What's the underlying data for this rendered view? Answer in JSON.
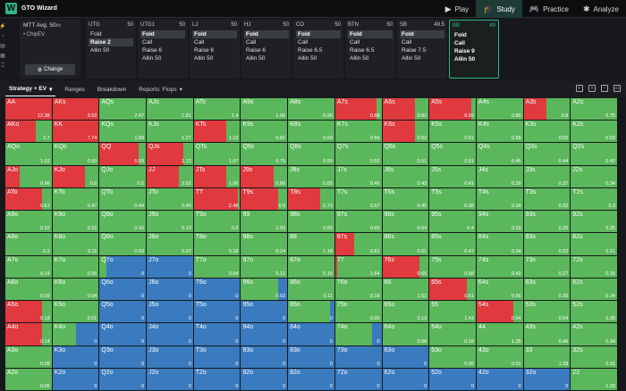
{
  "app": {
    "logo": "W",
    "title": "GTO Wizard"
  },
  "nav": [
    {
      "label": "Play",
      "icon": "▶"
    },
    {
      "label": "Study",
      "icon": "🎓",
      "active": true
    },
    {
      "label": "Practice",
      "icon": "🎮"
    },
    {
      "label": "Analyze",
      "icon": "✱"
    }
  ],
  "rail": [
    "⚡",
    "◔",
    "▤",
    "▦",
    "⌶"
  ],
  "settings": {
    "format": "MTT",
    "stack": "Avg. 50",
    "stack_unit": "bb",
    "metric": "ChipEV",
    "change": "Change"
  },
  "positions": [
    {
      "name": "UTG",
      "stack": "50",
      "actions": [
        "Fold",
        "Raise 2",
        "Allin 50"
      ],
      "selected": 1
    },
    {
      "name": "UTG1",
      "stack": "50",
      "actions": [
        "Fold",
        "Call",
        "Raise 6",
        "Allin 50"
      ],
      "selected": 0
    },
    {
      "name": "LJ",
      "stack": "50",
      "actions": [
        "Fold",
        "Call",
        "Raise 6",
        "Allin 50"
      ],
      "selected": 0
    },
    {
      "name": "HJ",
      "stack": "50",
      "actions": [
        "Fold",
        "Call",
        "Raise 6",
        "Allin 50"
      ],
      "selected": 0
    },
    {
      "name": "CO",
      "stack": "50",
      "actions": [
        "Fold",
        "Call",
        "Raise 6.5",
        "Allin 50"
      ],
      "selected": 0
    },
    {
      "name": "BTN",
      "stack": "50",
      "actions": [
        "Fold",
        "Call",
        "Raise 6.5",
        "Allin 50"
      ],
      "selected": 0
    },
    {
      "name": "SB",
      "stack": "49.5",
      "actions": [
        "Fold",
        "Call",
        "Raise 7.5",
        "Allin 50"
      ],
      "selected": 0
    },
    {
      "name": "BB",
      "stack": "49",
      "actions": [
        "Fold",
        "Call",
        "Raise 9",
        "Allin 50"
      ],
      "selected": -1,
      "active": true
    }
  ],
  "toolbar": {
    "tabs": [
      "Strategy + EV",
      "Ranges",
      "Breakdown",
      "Reports: Flops"
    ]
  },
  "colors": {
    "fold": "#3a7bbf",
    "call": "#5bb75b",
    "raise": "#e0393e",
    "accent": "#2fb58a"
  },
  "grid": [
    [
      [
        "AA",
        "12.38",
        0,
        0,
        1
      ],
      [
        "AKs",
        "3.52",
        0,
        0,
        1
      ],
      [
        "AQs",
        "2.47",
        0,
        1,
        0
      ],
      [
        "AJs",
        "1.81",
        0,
        1,
        0
      ],
      [
        "ATs",
        "1.4",
        0,
        1,
        0
      ],
      [
        "A9s",
        "1.06",
        0,
        1,
        0
      ],
      [
        "A8s",
        "0.96",
        0,
        1,
        0
      ],
      [
        "A7s",
        "0.88",
        0,
        0.1,
        0.9
      ],
      [
        "A6s",
        "0.82",
        0,
        0.3,
        0.7
      ],
      [
        "A5s",
        "0.92",
        0,
        0.1,
        0.9
      ],
      [
        "A4s",
        "0.86",
        0,
        1,
        0
      ],
      [
        "A3s",
        "0.8",
        0,
        0.5,
        0.5
      ],
      [
        "A2s",
        "0.75",
        0,
        1,
        0
      ]
    ],
    [
      [
        "AKo",
        "2.7",
        0,
        0.35,
        0.65
      ],
      [
        "KK",
        "7.74",
        0,
        0,
        1
      ],
      [
        "KQs",
        "1.59",
        0,
        1,
        0
      ],
      [
        "KJs",
        "1.27",
        0,
        1,
        0
      ],
      [
        "KTs",
        "1.13",
        0,
        0.3,
        0.7
      ],
      [
        "K9s",
        "0.81",
        0,
        1,
        0
      ],
      [
        "K8s",
        "0.69",
        0,
        1,
        0
      ],
      [
        "K7s",
        "0.66",
        0,
        1,
        0
      ],
      [
        "K6s",
        "0.62",
        0,
        0.3,
        0.7
      ],
      [
        "K5s",
        "0.61",
        0,
        1,
        0
      ],
      [
        "K4s",
        "0.58",
        0,
        1,
        0
      ],
      [
        "K3s",
        "0.55",
        0,
        1,
        0
      ],
      [
        "K2s",
        "0.53",
        0,
        1,
        0
      ]
    ],
    [
      [
        "AQo",
        "1.62",
        0,
        1,
        0
      ],
      [
        "KQo",
        "0.93",
        0,
        1,
        0
      ],
      [
        "QQ",
        "5.09",
        0,
        0.15,
        0.85
      ],
      [
        "QJs",
        "1.12",
        0,
        0.2,
        0.8
      ],
      [
        "QTs",
        "1.07",
        0,
        1,
        0
      ],
      [
        "Q9s",
        "0.75",
        0,
        1,
        0
      ],
      [
        "Q8s",
        "0.59",
        0,
        1,
        0
      ],
      [
        "Q7s",
        "0.52",
        0,
        1,
        0
      ],
      [
        "Q6s",
        "0.51",
        0,
        1,
        0
      ],
      [
        "Q5s",
        "0.51",
        0,
        1,
        0
      ],
      [
        "Q4s",
        "0.46",
        0,
        1,
        0
      ],
      [
        "Q3s",
        "0.44",
        0,
        1,
        0
      ],
      [
        "Q2s",
        "0.42",
        0,
        1,
        0
      ]
    ],
    [
      [
        "AJo",
        "0.96",
        0,
        0.7,
        0.3
      ],
      [
        "KJo",
        "0.6",
        0,
        0.3,
        0.7
      ],
      [
        "QJo",
        "0.5",
        0,
        1,
        0
      ],
      [
        "JJ",
        "3.52",
        0,
        0.3,
        0.7
      ],
      [
        "JTs",
        "1.06",
        0,
        0.3,
        0.7
      ],
      [
        "J9s",
        "0.86",
        0,
        0.3,
        0.7
      ],
      [
        "J8s",
        "0.65",
        0,
        1,
        0
      ],
      [
        "J7s",
        "0.46",
        0,
        1,
        0
      ],
      [
        "J6s",
        "0.43",
        0,
        1,
        0
      ],
      [
        "J5s",
        "0.41",
        0,
        1,
        0
      ],
      [
        "J4s",
        "0.39",
        0,
        1,
        0
      ],
      [
        "J3s",
        "0.37",
        0,
        1,
        0
      ],
      [
        "J2s",
        "0.34",
        0,
        1,
        0
      ]
    ],
    [
      [
        "ATo",
        "0.61",
        0,
        0.2,
        0.8
      ],
      [
        "KTo",
        "0.47",
        0,
        1,
        0
      ],
      [
        "QTo",
        "0.44",
        0,
        1,
        0
      ],
      [
        "JTo",
        "0.45",
        0,
        1,
        0
      ],
      [
        "TT",
        "2.48",
        0,
        0.05,
        0.95
      ],
      [
        "T9s",
        "0.9",
        0,
        0.2,
        0.8
      ],
      [
        "T8s",
        "0.73",
        0,
        0.3,
        0.7
      ],
      [
        "T7s",
        "0.57",
        0,
        1,
        0
      ],
      [
        "T6s",
        "0.45",
        0,
        1,
        0
      ],
      [
        "T5s",
        "0.38",
        0,
        1,
        0
      ],
      [
        "T4s",
        "0.34",
        0,
        1,
        0
      ],
      [
        "T3s",
        "0.32",
        0,
        1,
        0
      ],
      [
        "T2s",
        "0.3",
        0,
        1,
        0
      ]
    ],
    [
      [
        "A9o",
        "0.32",
        0,
        1,
        0
      ],
      [
        "K9o",
        "0.22",
        0,
        1,
        0
      ],
      [
        "Q9o",
        "0.16",
        0,
        1,
        0
      ],
      [
        "J9o",
        "0.19",
        0,
        1,
        0
      ],
      [
        "T9o",
        "0.3",
        0,
        1,
        0
      ],
      [
        "99",
        "2.03",
        0,
        1,
        0
      ],
      [
        "98s",
        "0.83",
        0,
        1,
        0
      ],
      [
        "97s",
        "0.65",
        0,
        1,
        0
      ],
      [
        "96s",
        "0.54",
        0,
        1,
        0
      ],
      [
        "95s",
        "0.4",
        0,
        1,
        0
      ],
      [
        "94s",
        "0.29",
        0,
        1,
        0
      ],
      [
        "93s",
        "0.26",
        0,
        1,
        0
      ],
      [
        "92s",
        "0.25",
        0,
        1,
        0
      ]
    ],
    [
      [
        "A8o",
        "0.2",
        0,
        1,
        0
      ],
      [
        "K8o",
        "0.11",
        0,
        1,
        0
      ],
      [
        "Q8o",
        "0.03",
        0,
        1,
        0
      ],
      [
        "J8o",
        "0.07",
        0,
        1,
        0
      ],
      [
        "T8o",
        "0.18",
        0,
        1,
        0
      ],
      [
        "98o",
        "0.24",
        0,
        1,
        0
      ],
      [
        "88",
        "1.18",
        0,
        1,
        0
      ],
      [
        "87s",
        "0.81",
        0,
        0.6,
        0.4
      ],
      [
        "86s",
        "0.61",
        0,
        1,
        0
      ],
      [
        "85s",
        "0.47",
        0,
        1,
        0
      ],
      [
        "84s",
        "0.34",
        0,
        1,
        0
      ],
      [
        "83s",
        "0.22",
        0,
        1,
        0
      ],
      [
        "82s",
        "0.21",
        0,
        1,
        0
      ]
    ],
    [
      [
        "A7o",
        "0.14",
        0,
        1,
        0
      ],
      [
        "K7o",
        "0.06",
        0,
        1,
        0
      ],
      [
        "Q7o",
        "0",
        0.85,
        0.15,
        0
      ],
      [
        "J7o",
        "0",
        1,
        0,
        0
      ],
      [
        "T7o",
        "0.04",
        0,
        1,
        0
      ],
      [
        "97o",
        "0.12",
        0,
        1,
        0
      ],
      [
        "87o",
        "0.15",
        0,
        1,
        0
      ],
      [
        "77",
        "1.64",
        0,
        0.95,
        0.05
      ],
      [
        "76s",
        "0.66",
        0,
        0.2,
        0.8
      ],
      [
        "75s",
        "0.58",
        0,
        1,
        0
      ],
      [
        "74s",
        "0.42",
        0,
        1,
        0
      ],
      [
        "73s",
        "0.27",
        0,
        1,
        0
      ],
      [
        "72s",
        "0.16",
        0,
        1,
        0
      ]
    ],
    [
      [
        "A6o",
        "0.09",
        0,
        1,
        0
      ],
      [
        "K6o",
        "0.04",
        0,
        1,
        0
      ],
      [
        "Q6o",
        "0",
        1,
        0,
        0
      ],
      [
        "J6o",
        "0",
        1,
        0,
        0
      ],
      [
        "T6o",
        "0",
        1,
        0,
        0
      ],
      [
        "96o",
        "0.02",
        0.2,
        0.8,
        0
      ],
      [
        "86o",
        "0.11",
        0,
        1,
        0
      ],
      [
        "76o",
        "0.18",
        0,
        1,
        0
      ],
      [
        "66",
        "1.52",
        0,
        1,
        0
      ],
      [
        "65s",
        "0.61",
        0,
        0.2,
        0.8
      ],
      [
        "64s",
        "0.56",
        0,
        1,
        0
      ],
      [
        "63s",
        "0.39",
        0,
        1,
        0
      ],
      [
        "62s",
        "0.24",
        0,
        1,
        0
      ]
    ],
    [
      [
        "A5o",
        "0.18",
        0,
        0.2,
        0.8
      ],
      [
        "K5o",
        "0.01",
        0,
        1,
        0
      ],
      [
        "Q5o",
        "0",
        1,
        0,
        0
      ],
      [
        "J5o",
        "0",
        1,
        0,
        0
      ],
      [
        "T5o",
        "0",
        1,
        0,
        0
      ],
      [
        "95o",
        "0",
        1,
        0,
        0
      ],
      [
        "85o",
        "0",
        0.1,
        0.9,
        0
      ],
      [
        "75o",
        "0.05",
        0,
        1,
        0
      ],
      [
        "65o",
        "0.13",
        0,
        1,
        0
      ],
      [
        "55",
        "1.43",
        0,
        1,
        0
      ],
      [
        "54s",
        "0.54",
        0,
        0.2,
        0.8
      ],
      [
        "53s",
        "0.54",
        0,
        1,
        0
      ],
      [
        "52s",
        "0.39",
        0,
        1,
        0
      ]
    ],
    [
      [
        "A4o",
        "0.14",
        0,
        0.2,
        0.8
      ],
      [
        "K4o",
        "0",
        0.5,
        0.5,
        0
      ],
      [
        "Q4o",
        "0",
        1,
        0,
        0
      ],
      [
        "J4o",
        "0",
        1,
        0,
        0
      ],
      [
        "T4o",
        "0",
        1,
        0,
        0
      ],
      [
        "94o",
        "0",
        1,
        0,
        0
      ],
      [
        "84o",
        "0",
        1,
        0,
        0
      ],
      [
        "74o",
        "0",
        0.2,
        0.8,
        0
      ],
      [
        "64o",
        "0.08",
        0,
        1,
        0
      ],
      [
        "54o",
        "0.18",
        0,
        1,
        0
      ],
      [
        "44",
        "1.35",
        0,
        1,
        0
      ],
      [
        "43s",
        "0.46",
        0,
        1,
        0
      ],
      [
        "42s",
        "0.34",
        0,
        1,
        0
      ]
    ],
    [
      [
        "A3o",
        "0.08",
        0,
        1,
        0
      ],
      [
        "K3o",
        "0",
        1,
        0,
        0
      ],
      [
        "Q3o",
        "0",
        1,
        0,
        0
      ],
      [
        "J3o",
        "0",
        1,
        0,
        0
      ],
      [
        "T3o",
        "0",
        1,
        0,
        0
      ],
      [
        "93o",
        "0",
        1,
        0,
        0
      ],
      [
        "83o",
        "0",
        1,
        0,
        0
      ],
      [
        "73o",
        "0",
        1,
        0,
        0
      ],
      [
        "63o",
        "0",
        1,
        0,
        0
      ],
      [
        "53o",
        "0.06",
        0,
        1,
        0
      ],
      [
        "43o",
        "0.01",
        0,
        1,
        0
      ],
      [
        "33",
        "1.28",
        0,
        1,
        0
      ],
      [
        "32s",
        "0.31",
        0,
        1,
        0
      ]
    ],
    [
      [
        "A2o",
        "0.06",
        0,
        1,
        0
      ],
      [
        "K2o",
        "0",
        1,
        0,
        0
      ],
      [
        "Q2o",
        "0",
        1,
        0,
        0
      ],
      [
        "J2o",
        "0",
        1,
        0,
        0
      ],
      [
        "T2o",
        "0",
        1,
        0,
        0
      ],
      [
        "92o",
        "0",
        1,
        0,
        0
      ],
      [
        "82o",
        "0",
        1,
        0,
        0
      ],
      [
        "72o",
        "0",
        1,
        0,
        0
      ],
      [
        "62o",
        "0",
        1,
        0,
        0
      ],
      [
        "52o",
        "0",
        1,
        0,
        0
      ],
      [
        "42o",
        "0",
        1,
        0,
        0
      ],
      [
        "32o",
        "0",
        1,
        0,
        0
      ],
      [
        "22",
        "1.29",
        0,
        1,
        0
      ]
    ]
  ]
}
